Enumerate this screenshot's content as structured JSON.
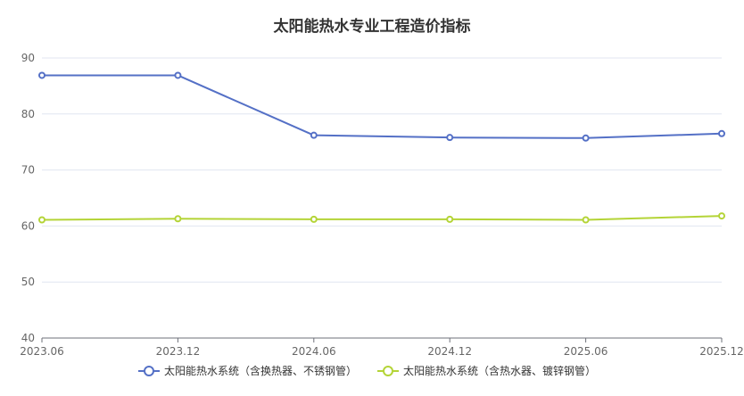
{
  "chart_data": {
    "type": "line",
    "title": "太阳能热水专业工程造价指标",
    "xlabel": "",
    "ylabel": "",
    "categories": [
      "2023.06",
      "2023.12",
      "2024.06",
      "2024.12",
      "2025.06",
      "2025.12"
    ],
    "ylim": [
      40,
      90
    ],
    "yticks": [
      40,
      50,
      60,
      70,
      80,
      90
    ],
    "grid": true,
    "legend_position": "bottom",
    "series": [
      {
        "name": "太阳能热水系统（含换热器、不锈钢管）",
        "color": "#5470c6",
        "values": [
          86.9,
          86.9,
          76.2,
          75.8,
          75.7,
          76.5
        ]
      },
      {
        "name": "太阳能热水系统（含热水器、镀锌钢管）",
        "color": "#b4d437",
        "values": [
          61.1,
          61.3,
          61.2,
          61.2,
          61.1,
          61.8
        ]
      }
    ]
  }
}
